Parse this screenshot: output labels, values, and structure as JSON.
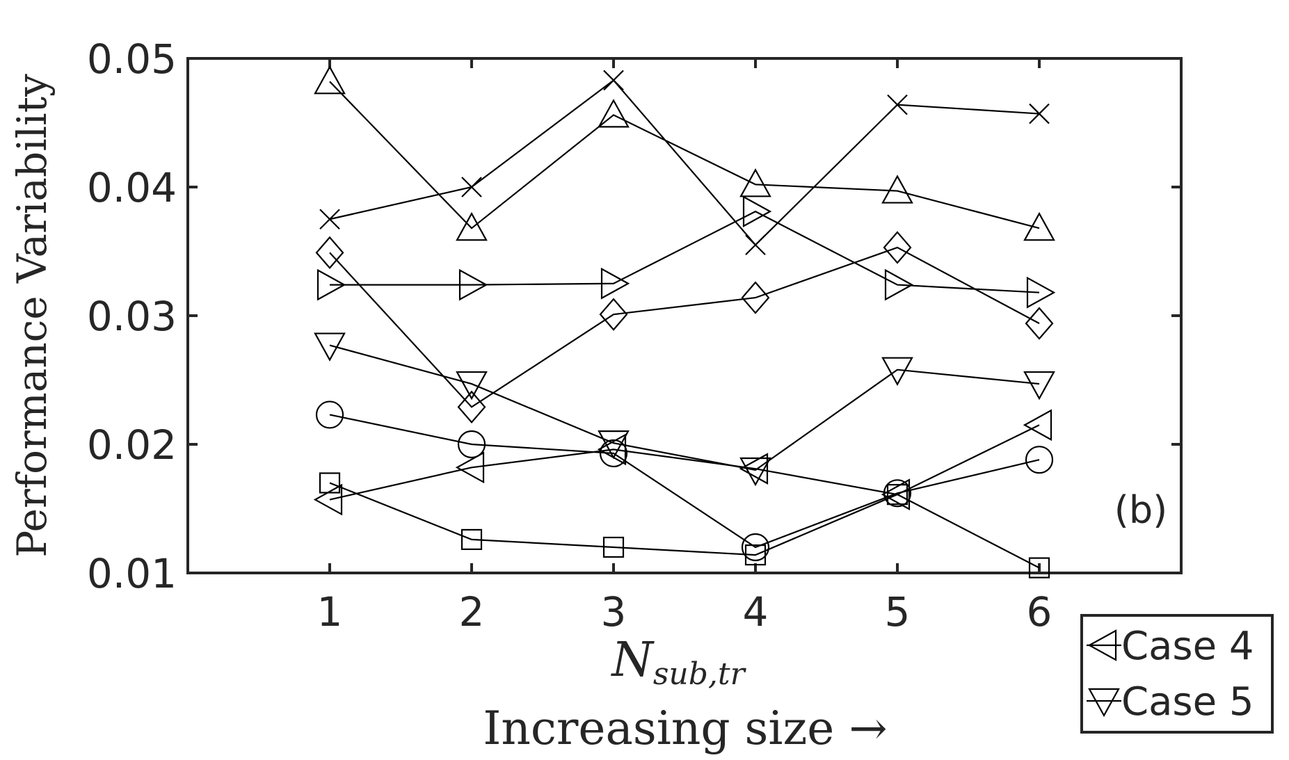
{
  "chart_data": {
    "type": "line",
    "xlabel": "N",
    "xlabel_sub": "sub,tr",
    "xlabel_line2": "Increasing size →",
    "ylabel": "Performance Variability",
    "panel_label": "(b)",
    "x": [
      1,
      2,
      3,
      4,
      5,
      6
    ],
    "xticks": [
      "1",
      "2",
      "3",
      "4",
      "5",
      "6"
    ],
    "xlim": [
      0,
      7
    ],
    "yticks": [
      "0.01",
      "0.02",
      "0.03",
      "0.04",
      "0.05"
    ],
    "ylim": [
      0.01,
      0.05
    ],
    "legend_position": "bottom-right",
    "series": [
      {
        "marker": "x",
        "values": [
          0.0375,
          0.04,
          0.0483,
          0.0355,
          0.0464,
          0.0457
        ]
      },
      {
        "marker": "triangle-up",
        "values": [
          0.0482,
          0.0368,
          0.0456,
          0.0402,
          0.0397,
          0.0368
        ]
      },
      {
        "marker": "triangle-right",
        "values": [
          0.0324,
          0.0324,
          0.0325,
          0.0381,
          0.0324,
          0.0318
        ]
      },
      {
        "marker": "diamond",
        "values": [
          0.0349,
          0.0229,
          0.0301,
          0.0314,
          0.0353,
          0.0294
        ]
      },
      {
        "marker": "triangle-down",
        "name": "Case 5",
        "values": [
          0.0277,
          0.0247,
          0.0201,
          0.018,
          0.0258,
          0.0247
        ]
      },
      {
        "marker": "circle",
        "values": [
          0.0223,
          0.02,
          0.0193,
          0.012,
          0.0162,
          0.0188
        ]
      },
      {
        "marker": "triangle-left",
        "name": "Case 4",
        "values": [
          0.0157,
          0.0182,
          0.0196,
          0.0181,
          0.0161,
          0.0215
        ]
      },
      {
        "marker": "square",
        "values": [
          0.017,
          0.0126,
          0.012,
          0.0114,
          0.0161,
          0.0104
        ]
      }
    ],
    "legend": [
      {
        "marker": "triangle-left",
        "label": "Case 4"
      },
      {
        "marker": "triangle-down",
        "label": "Case 5"
      }
    ],
    "grid": false
  }
}
